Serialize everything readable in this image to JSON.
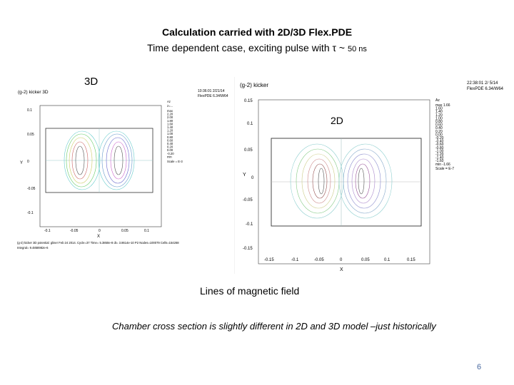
{
  "title": {
    "line1": "Calculation carried with 2D/3D Flex.PDE",
    "line2_main": "Time dependent case, exciting pulse with τ ~",
    "line2_small": "50 ns"
  },
  "labels": {
    "three_d": "3D",
    "two_d": "2D"
  },
  "plot3d": {
    "heading": "(g-2) kicker 3D",
    "stamp1": "10:36:01 2/21/14",
    "stamp2": "FlexPDE 6.34/W64",
    "legend_title": "Az",
    "legend_sub": "z=...",
    "legend_values": [
      "max",
      "2.20",
      "2.00",
      "1.80",
      "1.60",
      "1.40",
      "1.20",
      "1.00",
      "0.80",
      "0.60",
      "0.40",
      "0.20",
      "0.00",
      "-0.20",
      "min"
    ],
    "scale": "Scale = E-3",
    "y_label": "Y",
    "x_label": "X",
    "y_ticks": [
      "0.1",
      "0.05",
      "0",
      "-0.05",
      "-0.1"
    ],
    "x_ticks": [
      "-0.1",
      "-0.05",
      "0",
      "0.05",
      "0.1"
    ],
    "footer1": "(g-2) kicker 3D potential: gliner Feb 24 2014. Cycle=37 Time= 5.3850e-8 dt= 3.8614e-10 P2 Nodes=100079 Cells=154268",
    "footer2": "Integral= 9.4858982e-6"
  },
  "plot2d": {
    "heading": "(g-2) kicker",
    "stamp1": "22:38:01 2/ 5/14",
    "stamp2": "FlexPDE 6.34/W64",
    "legend_title": "Az",
    "legend_values": [
      "max 1.66",
      "1.60",
      "1.40",
      "1.20",
      "1.00",
      "0.80",
      "0.60",
      "0.40",
      "0.20",
      "0.00",
      "-0.20",
      "-0.40",
      "-0.60",
      "-0.80",
      "-1.00",
      "-1.20",
      "-1.40",
      "-1.60",
      "min -1.66"
    ],
    "scale": "Scale = E-7",
    "y_label": "Y",
    "x_label": "X",
    "y_ticks": [
      "0.15",
      "0.1",
      "0.05",
      "0",
      "-0.05",
      "-0.1",
      "-0.15"
    ],
    "x_ticks": [
      "-0.15",
      "-0.1",
      "-0.05",
      "0",
      "0.05",
      "0.1",
      "0.15"
    ]
  },
  "caption": "Lines of magnetic field",
  "note": "Chamber cross section is slightly different in 2D and 3D model –just historically",
  "page_number": "6"
}
